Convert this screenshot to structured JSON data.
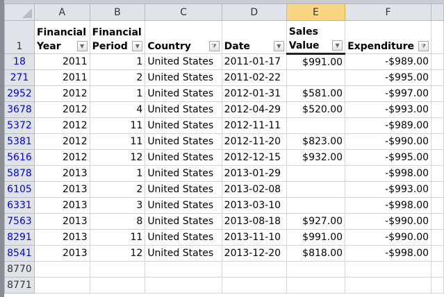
{
  "columns": [
    "A",
    "B",
    "C",
    "D",
    "E",
    "F"
  ],
  "header_row": {
    "row_num": "1",
    "cells": [
      {
        "line1": "Financial",
        "line2": "Year",
        "filter": "dropdown"
      },
      {
        "line1": "Financial",
        "line2": "Period",
        "filter": "dropdown"
      },
      {
        "line1": "",
        "line2": "Country",
        "filter": "funnel"
      },
      {
        "line1": "",
        "line2": "Date",
        "filter": "dropdown"
      },
      {
        "line1": "Sales",
        "line2": "Value",
        "filter": "dropdown"
      },
      {
        "line1": "",
        "line2": "Expenditure",
        "filter": "funnel"
      }
    ]
  },
  "icons": {
    "dropdown": "▼",
    "funnel": "⧩"
  },
  "rows": [
    {
      "n": "18",
      "year": "2011",
      "period": "1",
      "country": "United States",
      "date": "2011-01-17",
      "sales": "$991.00",
      "exp": "-$989.00"
    },
    {
      "n": "271",
      "year": "2011",
      "period": "2",
      "country": "United States",
      "date": "2011-02-22",
      "sales": "",
      "exp": "-$995.00"
    },
    {
      "n": "2952",
      "year": "2012",
      "period": "1",
      "country": "United States",
      "date": "2012-01-31",
      "sales": "$581.00",
      "exp": "-$997.00"
    },
    {
      "n": "3678",
      "year": "2012",
      "period": "4",
      "country": "United States",
      "date": "2012-04-29",
      "sales": "$520.00",
      "exp": "-$993.00"
    },
    {
      "n": "5372",
      "year": "2012",
      "period": "11",
      "country": "United States",
      "date": "2012-11-11",
      "sales": "",
      "exp": "-$989.00"
    },
    {
      "n": "5381",
      "year": "2012",
      "period": "11",
      "country": "United States",
      "date": "2012-11-20",
      "sales": "$823.00",
      "exp": "-$990.00"
    },
    {
      "n": "5616",
      "year": "2012",
      "period": "12",
      "country": "United States",
      "date": "2012-12-15",
      "sales": "$932.00",
      "exp": "-$995.00"
    },
    {
      "n": "5878",
      "year": "2013",
      "period": "1",
      "country": "United States",
      "date": "2013-01-29",
      "sales": "",
      "exp": "-$998.00"
    },
    {
      "n": "6105",
      "year": "2013",
      "period": "2",
      "country": "United States",
      "date": "2013-02-08",
      "sales": "",
      "exp": "-$993.00"
    },
    {
      "n": "6331",
      "year": "2013",
      "period": "3",
      "country": "United States",
      "date": "2013-03-10",
      "sales": "",
      "exp": "-$998.00"
    },
    {
      "n": "7563",
      "year": "2013",
      "period": "8",
      "country": "United States",
      "date": "2013-08-18",
      "sales": "$927.00",
      "exp": "-$990.00"
    },
    {
      "n": "8291",
      "year": "2013",
      "period": "11",
      "country": "United States",
      "date": "2013-11-10",
      "sales": "$991.00",
      "exp": "-$990.00"
    },
    {
      "n": "8541",
      "year": "2013",
      "period": "12",
      "country": "United States",
      "date": "2013-12-20",
      "sales": "$818.00",
      "exp": "-$998.00"
    }
  ],
  "empty_rows": [
    "8770",
    "8771"
  ]
}
